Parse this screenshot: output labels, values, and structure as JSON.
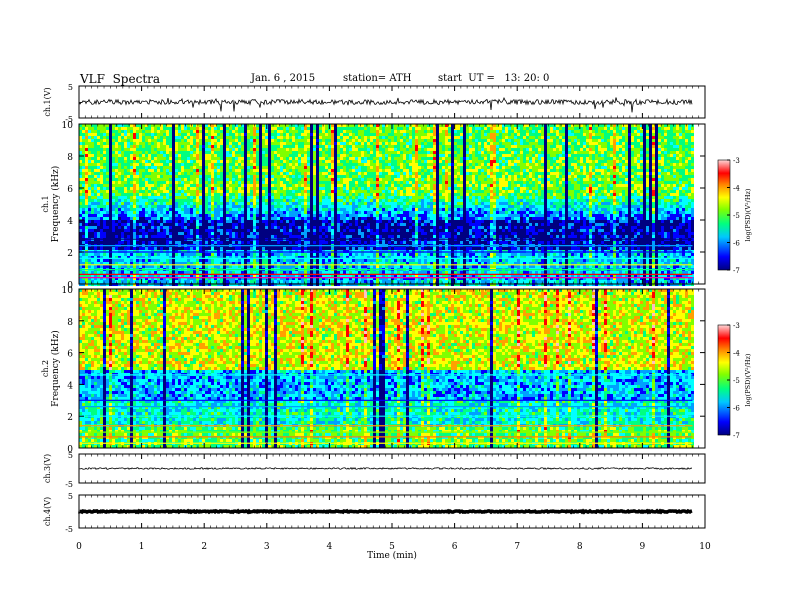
{
  "header": {
    "title": "VLF  Spectra",
    "date": "Jan. 6 , 2015",
    "station": "station= ATH",
    "start": "start  UT =   13: 20: 0"
  },
  "chart_data": {
    "type": "spectrogram",
    "x_axis": {
      "label": "Time  (min)",
      "range": [
        0,
        10
      ],
      "ticks": [
        "0",
        "1",
        "2",
        "3",
        "4",
        "5",
        "6",
        "7",
        "8",
        "9",
        "10"
      ],
      "data_end": 9.8
    },
    "waveform_panels": [
      {
        "ylabel": "ch.1(V)",
        "ylim": [
          -5,
          5
        ],
        "tick_labels": [
          "5",
          "-5"
        ],
        "trace_level": 0,
        "noise": "high"
      },
      {
        "ylabel": "ch.3(V)",
        "ylim": [
          -5,
          5
        ],
        "tick_labels": [
          "5",
          "-5"
        ],
        "trace_level": 0,
        "noise": "low"
      },
      {
        "ylabel": "ch.4(V)",
        "ylim": [
          -5,
          5
        ],
        "tick_labels": [
          "5",
          "-5"
        ],
        "trace_level": 0,
        "noise": "thick"
      }
    ],
    "spectrogram_panels": [
      {
        "channel": "ch.1",
        "ylabel": "Frequency  (kHz)",
        "ylim": [
          0,
          10
        ],
        "tick_labels": [
          "10",
          "8",
          "6",
          "4",
          "2",
          "0"
        ],
        "colorbar": {
          "label": "log(PSD)(V²/Hz)",
          "range": [
            -7,
            -3
          ],
          "tick_labels": [
            "-3",
            "-4",
            "-5",
            "-6",
            "-7"
          ]
        }
      },
      {
        "channel": "ch.2",
        "ylabel": "Frequency  (kHz)",
        "ylim": [
          0,
          10
        ],
        "tick_labels": [
          "10",
          "8",
          "6",
          "4",
          "2",
          "0"
        ],
        "colorbar": {
          "label": "log(PSD)(V²/Hz)",
          "range": [
            -7,
            -3
          ],
          "tick_labels": [
            "-3",
            "-4",
            "-5",
            "-6",
            "-7"
          ]
        }
      }
    ],
    "colormap": [
      "#000080",
      "#0000ff",
      "#00a0ff",
      "#00ffff",
      "#00ff80",
      "#80ff00",
      "#ffff00",
      "#ffa000",
      "#ff0000",
      "#ffc0c0"
    ]
  }
}
